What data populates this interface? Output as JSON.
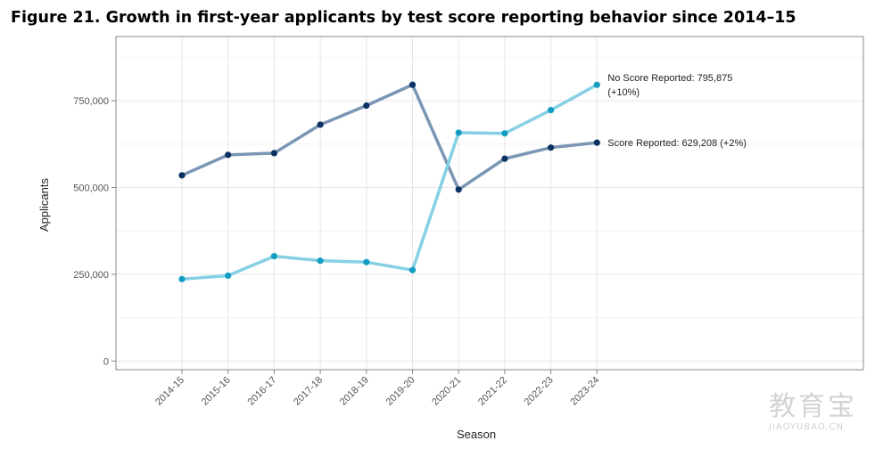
{
  "figure_title": "Figure 21. Growth in first-year applicants by test score reporting behavior since 2014–15",
  "watermark": {
    "text_cn": "教育宝",
    "text_en": "JIAOYUBAO.CN"
  },
  "colors": {
    "score_reported": "#7b96b4",
    "score_reported_points": "#0c3264",
    "no_score_reported": "#86d0e4",
    "no_score_reported_points": "#159cc3"
  },
  "chart_data": {
    "type": "line",
    "title": "",
    "xlabel": "Season",
    "ylabel": "Applicants",
    "categories": [
      "2014-15",
      "2015-16",
      "2016-17",
      "2017-18",
      "2018-19",
      "2019-20",
      "2020-21",
      "2021-22",
      "2022-23",
      "2023-24"
    ],
    "ylim": [
      -25000,
      935000
    ],
    "yticks": [
      0,
      250000,
      500000,
      750000
    ],
    "ytick_labels": [
      "0",
      "250,000",
      "500,000",
      "750,000"
    ],
    "grid": true,
    "series": [
      {
        "name": "Score Reported",
        "values": [
          535000,
          594000,
          599000,
          681000,
          736000,
          796000,
          494000,
          583000,
          615000,
          629208
        ],
        "end_label": [
          "Score Reported: 629,208 (+2%)"
        ]
      },
      {
        "name": "No Score Reported",
        "values": [
          236000,
          246000,
          302000,
          289000,
          285000,
          262000,
          658000,
          656000,
          723000,
          795875
        ],
        "end_label": [
          "No Score Reported: 795,875",
          "(+10%)"
        ]
      }
    ]
  }
}
